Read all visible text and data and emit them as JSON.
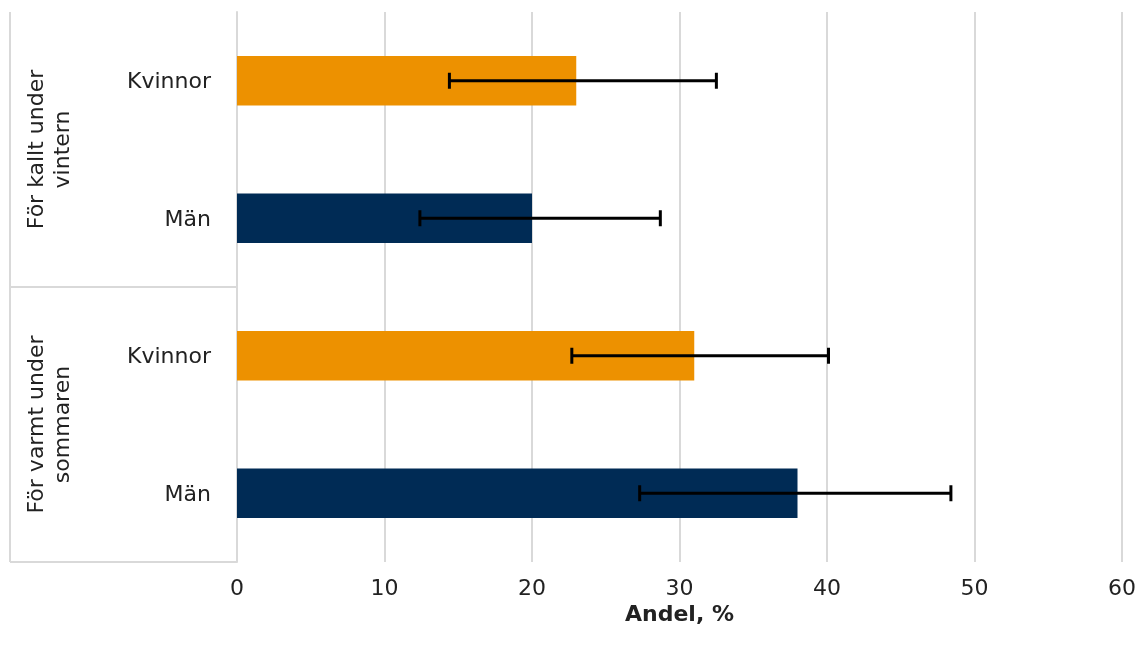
{
  "chart_data": {
    "type": "bar",
    "orientation": "horizontal",
    "xlabel": "Andel, %",
    "categories": [
      "Kvinnor",
      "Män",
      "Kvinnor",
      "Män"
    ],
    "values": [
      23,
      20,
      31,
      38
    ],
    "colors": [
      "#ed9100",
      "#002b55",
      "#ed9100",
      "#002b55"
    ],
    "errors": [
      [
        14.4,
        32.5
      ],
      [
        12.4,
        28.7
      ],
      [
        22.7,
        40.1
      ],
      [
        27.3,
        48.4
      ]
    ],
    "xlim": [
      0,
      60
    ],
    "xticks": [
      0,
      10,
      20,
      30,
      40,
      50,
      60
    ],
    "grid": "x",
    "annotations": [
      "För kallt under vintern",
      "För varmt under sommaren"
    ]
  }
}
